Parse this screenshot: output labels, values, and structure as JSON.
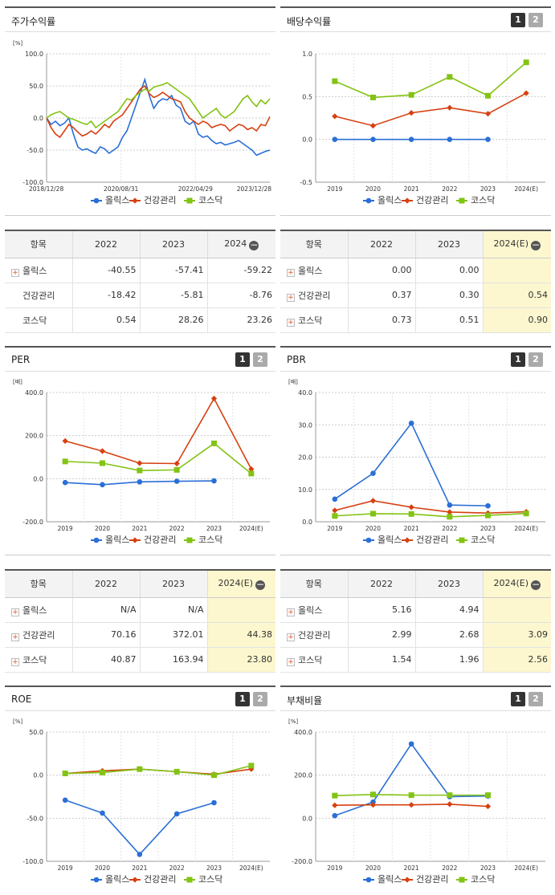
{
  "colors": {
    "series1": "#2a6fd6",
    "series2": "#d64010",
    "series3": "#82c314",
    "highlight": "#fdf7cf"
  },
  "legend": [
    "올릭스",
    "건강관리",
    "코스닥"
  ],
  "panels": {
    "stock": {
      "title": "주가수익률"
    },
    "dividend": {
      "title": "배당수익률",
      "pages": [
        "1",
        "2"
      ]
    },
    "per": {
      "title": "PER",
      "pages": [
        "1",
        "2"
      ]
    },
    "pbr": {
      "title": "PBR",
      "pages": [
        "1",
        "2"
      ]
    },
    "roe": {
      "title": "ROE",
      "pages": [
        "1",
        "2"
      ]
    },
    "debt": {
      "title": "부채비율",
      "pages": [
        "1",
        "2"
      ]
    }
  },
  "tables": {
    "stock": {
      "headers": [
        "항목",
        "2022",
        "2023",
        "2024"
      ],
      "rows": [
        {
          "name": "올릭스",
          "expand": true,
          "values": [
            "-40.55",
            "-57.41",
            "-59.22"
          ]
        },
        {
          "name": "건강관리",
          "expand": false,
          "values": [
            "-18.42",
            "-5.81",
            "-8.76"
          ]
        },
        {
          "name": "코스닥",
          "expand": false,
          "values": [
            "0.54",
            "28.26",
            "23.26"
          ]
        }
      ]
    },
    "dividend": {
      "headers": [
        "항목",
        "2022",
        "2023",
        "2024(E)"
      ],
      "rows": [
        {
          "name": "올릭스",
          "expand": true,
          "values": [
            "0.00",
            "0.00",
            ""
          ]
        },
        {
          "name": "건강관리",
          "expand": true,
          "values": [
            "0.37",
            "0.30",
            "0.54"
          ]
        },
        {
          "name": "코스닥",
          "expand": true,
          "values": [
            "0.73",
            "0.51",
            "0.90"
          ]
        }
      ]
    },
    "per": {
      "headers": [
        "항목",
        "2022",
        "2023",
        "2024(E)"
      ],
      "rows": [
        {
          "name": "올릭스",
          "expand": true,
          "values": [
            "N/A",
            "N/A",
            ""
          ]
        },
        {
          "name": "건강관리",
          "expand": true,
          "values": [
            "70.16",
            "372.01",
            "44.38"
          ]
        },
        {
          "name": "코스닥",
          "expand": true,
          "values": [
            "40.87",
            "163.94",
            "23.80"
          ]
        }
      ]
    },
    "pbr": {
      "headers": [
        "항목",
        "2022",
        "2023",
        "2024(E)"
      ],
      "rows": [
        {
          "name": "올릭스",
          "expand": true,
          "values": [
            "5.16",
            "4.94",
            ""
          ]
        },
        {
          "name": "건강관리",
          "expand": true,
          "values": [
            "2.99",
            "2.68",
            "3.09"
          ]
        },
        {
          "name": "코스닥",
          "expand": true,
          "values": [
            "1.54",
            "1.96",
            "2.56"
          ]
        }
      ]
    }
  },
  "chart_data": [
    {
      "id": "stock",
      "type": "line",
      "unit": "[%]",
      "ylim": [
        -100,
        100
      ],
      "yticks": [
        "100.0",
        "50.0",
        "0.0",
        "-50.0",
        "-100.0"
      ],
      "xticks": [
        "2018/12/28",
        "2020/08/31",
        "2022/04/29",
        "2023/12/28"
      ],
      "series": [
        {
          "name": "올릭스",
          "values": [
            0,
            -10,
            -5,
            -12,
            -8,
            0,
            -25,
            -45,
            -50,
            -48,
            -52,
            -55,
            -45,
            -48,
            -55,
            -50,
            -45,
            -30,
            -20,
            0,
            20,
            40,
            60,
            35,
            15,
            25,
            30,
            28,
            35,
            20,
            15,
            -5,
            -10,
            -5,
            -25,
            -30,
            -28,
            -35,
            -40,
            -38,
            -42,
            -40,
            -38,
            -35,
            -40,
            -45,
            -50,
            -58,
            -55,
            -52,
            -50
          ]
        },
        {
          "name": "건강관리",
          "values": [
            0,
            -15,
            -25,
            -30,
            -20,
            -10,
            -15,
            -22,
            -28,
            -25,
            -20,
            -25,
            -18,
            -10,
            -15,
            -5,
            0,
            5,
            15,
            25,
            35,
            45,
            50,
            38,
            32,
            35,
            40,
            35,
            30,
            28,
            25,
            10,
            0,
            -5,
            -10,
            -5,
            -8,
            -15,
            -12,
            -10,
            -12,
            -20,
            -15,
            -10,
            -12,
            -18,
            -15,
            -20,
            -10,
            -12,
            2
          ]
        },
        {
          "name": "코스닥",
          "values": [
            0,
            5,
            8,
            10,
            5,
            0,
            -2,
            -5,
            -8,
            -10,
            -5,
            -15,
            -10,
            -5,
            0,
            5,
            10,
            20,
            30,
            28,
            35,
            40,
            45,
            42,
            48,
            50,
            52,
            55,
            50,
            45,
            40,
            35,
            30,
            20,
            10,
            0,
            5,
            10,
            15,
            5,
            0,
            5,
            10,
            20,
            30,
            35,
            25,
            18,
            28,
            22,
            30
          ]
        }
      ]
    },
    {
      "id": "dividend",
      "type": "line",
      "unit": "",
      "ylim": [
        -0.5,
        1.0
      ],
      "yticks": [
        "1.0",
        "0.5",
        "0.0",
        "-0.5"
      ],
      "categories": [
        "2019",
        "2020",
        "2021",
        "2022",
        "2023",
        "2024(E)"
      ],
      "series": [
        {
          "name": "올릭스",
          "values": [
            0,
            0,
            0,
            0,
            0,
            null
          ]
        },
        {
          "name": "건강관리",
          "values": [
            0.27,
            0.16,
            0.31,
            0.37,
            0.3,
            0.54
          ]
        },
        {
          "name": "코스닥",
          "values": [
            0.68,
            0.49,
            0.52,
            0.73,
            0.51,
            0.9
          ]
        }
      ]
    },
    {
      "id": "per",
      "type": "line",
      "unit": "[배]",
      "ylim": [
        -200,
        400
      ],
      "yticks": [
        "400.0",
        "200.0",
        "0.0",
        "-200.0"
      ],
      "categories": [
        "2019",
        "2020",
        "2021",
        "2022",
        "2023",
        "2024(E)"
      ],
      "series": [
        {
          "name": "올릭스",
          "values": [
            -18,
            -28,
            -15,
            -12,
            -10,
            null
          ]
        },
        {
          "name": "건강관리",
          "values": [
            175,
            128,
            72,
            70.16,
            372.01,
            44.38
          ]
        },
        {
          "name": "코스닥",
          "values": [
            80,
            72,
            38,
            40.87,
            163.94,
            23.8
          ]
        }
      ]
    },
    {
      "id": "pbr",
      "type": "line",
      "unit": "[배]",
      "ylim": [
        0,
        40
      ],
      "yticks": [
        "40.0",
        "30.0",
        "20.0",
        "10.0",
        "0.0"
      ],
      "categories": [
        "2019",
        "2020",
        "2021",
        "2022",
        "2023",
        "2024(E)"
      ],
      "series": [
        {
          "name": "올릭스",
          "values": [
            7,
            15,
            30.5,
            5.16,
            4.94,
            null
          ]
        },
        {
          "name": "건강관리",
          "values": [
            3.5,
            6.5,
            4.5,
            2.99,
            2.68,
            3.09
          ]
        },
        {
          "name": "코스닥",
          "values": [
            1.8,
            2.5,
            2.4,
            1.54,
            1.96,
            2.56
          ]
        }
      ]
    },
    {
      "id": "roe",
      "type": "line",
      "unit": "[%]",
      "ylim": [
        -100,
        50
      ],
      "yticks": [
        "50.0",
        "0.0",
        "-50.0",
        "-100.0"
      ],
      "categories": [
        "2019",
        "2020",
        "2021",
        "2022",
        "2023",
        "2024(E)"
      ],
      "series": [
        {
          "name": "올릭스",
          "values": [
            -29,
            -44,
            -92,
            -45,
            -32,
            null
          ]
        },
        {
          "name": "건강관리",
          "values": [
            2,
            5,
            7,
            4,
            1,
            7
          ]
        },
        {
          "name": "코스닥",
          "values": [
            2,
            3,
            7,
            4,
            0,
            11
          ]
        }
      ]
    },
    {
      "id": "debt",
      "type": "line",
      "unit": "[%]",
      "ylim": [
        -200,
        400
      ],
      "yticks": [
        "400.0",
        "200.0",
        "0.0",
        "-200.0"
      ],
      "categories": [
        "2019",
        "2020",
        "2021",
        "2022",
        "2023",
        "2024(E)"
      ],
      "series": [
        {
          "name": "올릭스",
          "values": [
            12,
            75,
            345,
            100,
            103,
            null
          ]
        },
        {
          "name": "건강관리",
          "values": [
            60,
            62,
            62,
            65,
            55,
            null
          ]
        },
        {
          "name": "코스닥",
          "values": [
            105,
            110,
            107,
            107,
            107,
            null
          ]
        }
      ]
    }
  ]
}
